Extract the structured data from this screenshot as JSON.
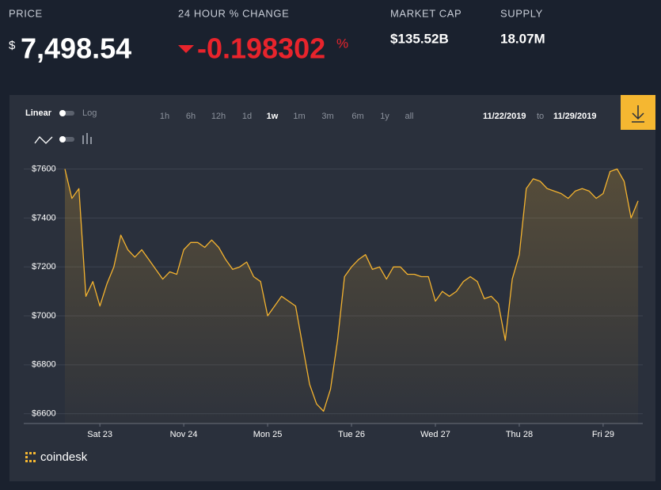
{
  "header": {
    "price_label": "PRICE",
    "price_currency": "$",
    "price": "7,498.54",
    "change_label": "24 HOUR % CHANGE",
    "change": "-0.198302",
    "change_unit": "%",
    "market_cap_label": "MARKET CAP",
    "market_cap": "$135.52B",
    "supply_label": "SUPPLY",
    "supply": "18.07M"
  },
  "controls": {
    "scale_linear": "Linear",
    "scale_log": "Log",
    "ranges": [
      "1h",
      "6h",
      "12h",
      "1d",
      "1w",
      "1m",
      "3m",
      "6m",
      "1y",
      "all"
    ],
    "active_range": "1w",
    "date_from": "11/22/2019",
    "date_to_word": "to",
    "date_to": "11/29/2019"
  },
  "brand": "coindesk",
  "chart_data": {
    "type": "line",
    "categories": [
      null,
      null,
      null,
      null,
      null,
      "Sat 23",
      null,
      null,
      null,
      null,
      null,
      null,
      null,
      null,
      null,
      null,
      null,
      "Nov 24",
      null,
      null,
      null,
      null,
      null,
      null,
      null,
      null,
      null,
      null,
      null,
      "Mon 25",
      null,
      null,
      null,
      null,
      null,
      null,
      null,
      null,
      null,
      null,
      null,
      "Tue 26",
      null,
      null,
      null,
      null,
      null,
      null,
      null,
      null,
      null,
      null,
      null,
      "Wed 27",
      null,
      null,
      null,
      null,
      null,
      null,
      null,
      null,
      null,
      null,
      null,
      "Thu 28",
      null,
      null,
      null,
      null,
      null,
      null,
      null,
      null,
      null,
      null,
      null,
      "Fri 29",
      null,
      null,
      null,
      null,
      null
    ],
    "series": [
      {
        "color": "#f4b32f",
        "values": [
          7600,
          7480,
          7520,
          7080,
          7140,
          7040,
          7130,
          7200,
          7330,
          7270,
          7240,
          7270,
          7230,
          7190,
          7150,
          7180,
          7170,
          7270,
          7300,
          7300,
          7280,
          7310,
          7280,
          7230,
          7190,
          7200,
          7220,
          7160,
          7140,
          7000,
          7040,
          7080,
          7060,
          7040,
          6880,
          6720,
          6640,
          6610,
          6700,
          6900,
          7160,
          7200,
          7230,
          7250,
          7190,
          7200,
          7150,
          7200,
          7200,
          7170,
          7170,
          7160,
          7160,
          7060,
          7100,
          7080,
          7100,
          7140,
          7160,
          7140,
          7070,
          7080,
          7050,
          6900,
          7150,
          7250,
          7520,
          7560,
          7550,
          7520,
          7510,
          7500,
          7480,
          7510,
          7520,
          7510,
          7480,
          7500,
          7590,
          7600,
          7550,
          7400,
          7470
        ]
      }
    ],
    "ylim": [
      6560,
      7660
    ],
    "yticks": [
      {
        "value": 6600,
        "label": "$6600"
      },
      {
        "value": 6800,
        "label": "$6800"
      },
      {
        "value": 7000,
        "label": "$7000"
      },
      {
        "value": 7200,
        "label": "$7200"
      },
      {
        "value": 7400,
        "label": "$7400"
      },
      {
        "value": 7600,
        "label": "$7600"
      }
    ],
    "grid": true
  }
}
